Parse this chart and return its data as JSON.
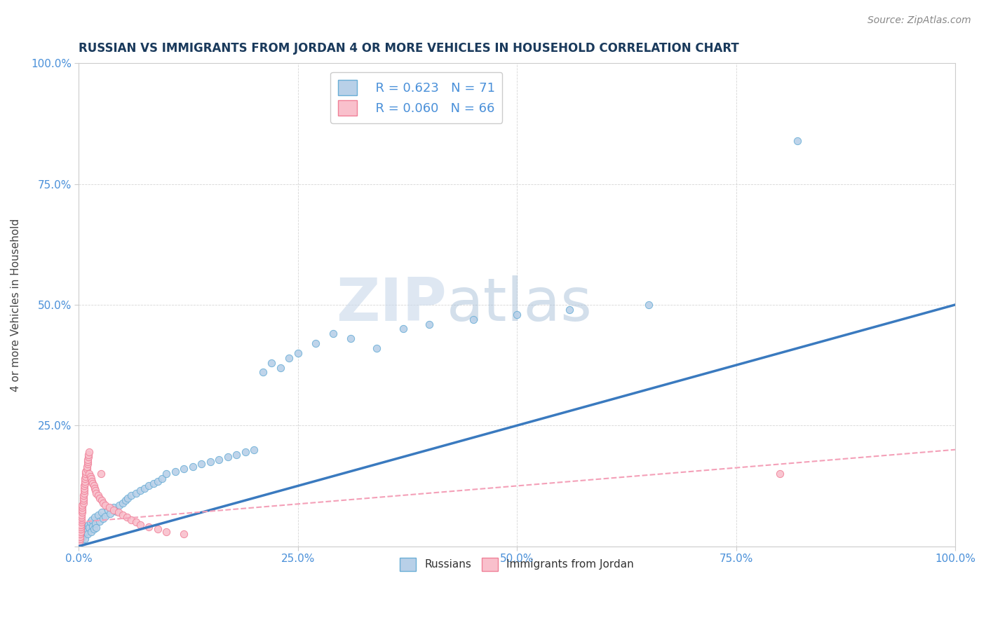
{
  "title": "RUSSIAN VS IMMIGRANTS FROM JORDAN 4 OR MORE VEHICLES IN HOUSEHOLD CORRELATION CHART",
  "source_text": "Source: ZipAtlas.com",
  "ylabel": "4 or more Vehicles in Household",
  "xlim": [
    0,
    1.0
  ],
  "ylim": [
    0,
    1.0
  ],
  "xticks": [
    0.0,
    0.25,
    0.5,
    0.75,
    1.0
  ],
  "xtick_labels": [
    "0.0%",
    "25.0%",
    "50.0%",
    "75.0%",
    "100.0%"
  ],
  "yticks": [
    0.0,
    0.25,
    0.5,
    0.75,
    1.0
  ],
  "ytick_labels": [
    "",
    "25.0%",
    "50.0%",
    "75.0%",
    "100.0%"
  ],
  "russian_fill_color": "#b8d0e8",
  "russian_edge_color": "#6aaed6",
  "jordan_fill_color": "#f9c0cc",
  "jordan_edge_color": "#f08098",
  "russian_line_color": "#3a7abf",
  "jordan_line_color": "#f4a0b8",
  "R_russian": 0.623,
  "N_russian": 71,
  "R_jordan": 0.06,
  "N_jordan": 66,
  "watermark_zip": "ZIP",
  "watermark_atlas": "atlas",
  "legend_labels": [
    "Russians",
    "Immigrants from Jordan"
  ],
  "russians_x": [
    0.001,
    0.002,
    0.003,
    0.003,
    0.004,
    0.004,
    0.005,
    0.005,
    0.006,
    0.007,
    0.008,
    0.009,
    0.01,
    0.011,
    0.012,
    0.013,
    0.014,
    0.015,
    0.016,
    0.017,
    0.018,
    0.019,
    0.02,
    0.022,
    0.024,
    0.026,
    0.028,
    0.03,
    0.033,
    0.036,
    0.04,
    0.043,
    0.046,
    0.05,
    0.053,
    0.056,
    0.06,
    0.065,
    0.07,
    0.075,
    0.08,
    0.085,
    0.09,
    0.095,
    0.1,
    0.11,
    0.12,
    0.13,
    0.14,
    0.15,
    0.16,
    0.17,
    0.18,
    0.19,
    0.2,
    0.21,
    0.22,
    0.23,
    0.24,
    0.25,
    0.27,
    0.29,
    0.31,
    0.34,
    0.37,
    0.4,
    0.45,
    0.5,
    0.56,
    0.65,
    0.82
  ],
  "russians_y": [
    0.02,
    0.015,
    0.01,
    0.025,
    0.018,
    0.03,
    0.022,
    0.035,
    0.028,
    0.015,
    0.04,
    0.032,
    0.025,
    0.045,
    0.038,
    0.05,
    0.03,
    0.055,
    0.042,
    0.035,
    0.06,
    0.048,
    0.038,
    0.065,
    0.052,
    0.07,
    0.058,
    0.062,
    0.075,
    0.068,
    0.08,
    0.072,
    0.085,
    0.09,
    0.095,
    0.1,
    0.105,
    0.11,
    0.115,
    0.12,
    0.125,
    0.13,
    0.135,
    0.14,
    0.15,
    0.155,
    0.16,
    0.165,
    0.17,
    0.175,
    0.18,
    0.185,
    0.19,
    0.195,
    0.2,
    0.36,
    0.38,
    0.37,
    0.39,
    0.4,
    0.42,
    0.44,
    0.43,
    0.41,
    0.45,
    0.46,
    0.47,
    0.48,
    0.49,
    0.5,
    0.84
  ],
  "jordan_x": [
    0.0005,
    0.001,
    0.001,
    0.001,
    0.002,
    0.002,
    0.002,
    0.002,
    0.003,
    0.003,
    0.003,
    0.003,
    0.004,
    0.004,
    0.004,
    0.004,
    0.005,
    0.005,
    0.005,
    0.005,
    0.006,
    0.006,
    0.006,
    0.006,
    0.007,
    0.007,
    0.007,
    0.008,
    0.008,
    0.008,
    0.009,
    0.009,
    0.01,
    0.01,
    0.01,
    0.011,
    0.011,
    0.012,
    0.012,
    0.013,
    0.014,
    0.015,
    0.016,
    0.017,
    0.018,
    0.019,
    0.02,
    0.022,
    0.024,
    0.026,
    0.028,
    0.03,
    0.035,
    0.04,
    0.045,
    0.05,
    0.055,
    0.06,
    0.065,
    0.07,
    0.08,
    0.09,
    0.1,
    0.12,
    0.025,
    0.8
  ],
  "jordan_y": [
    0.01,
    0.015,
    0.02,
    0.025,
    0.03,
    0.035,
    0.04,
    0.045,
    0.05,
    0.055,
    0.06,
    0.065,
    0.07,
    0.075,
    0.08,
    0.085,
    0.09,
    0.095,
    0.1,
    0.105,
    0.11,
    0.115,
    0.12,
    0.125,
    0.13,
    0.135,
    0.14,
    0.145,
    0.15,
    0.155,
    0.16,
    0.165,
    0.17,
    0.175,
    0.18,
    0.185,
    0.19,
    0.195,
    0.15,
    0.145,
    0.14,
    0.135,
    0.13,
    0.125,
    0.12,
    0.115,
    0.11,
    0.105,
    0.1,
    0.095,
    0.09,
    0.085,
    0.08,
    0.075,
    0.07,
    0.065,
    0.06,
    0.055,
    0.05,
    0.045,
    0.04,
    0.035,
    0.03,
    0.025,
    0.15,
    0.15
  ],
  "russian_trendline_x": [
    0.0,
    1.0
  ],
  "russian_trendline_y": [
    0.0,
    0.5
  ],
  "jordan_trendline_x": [
    0.0,
    1.0
  ],
  "jordan_trendline_y": [
    0.05,
    0.2
  ]
}
